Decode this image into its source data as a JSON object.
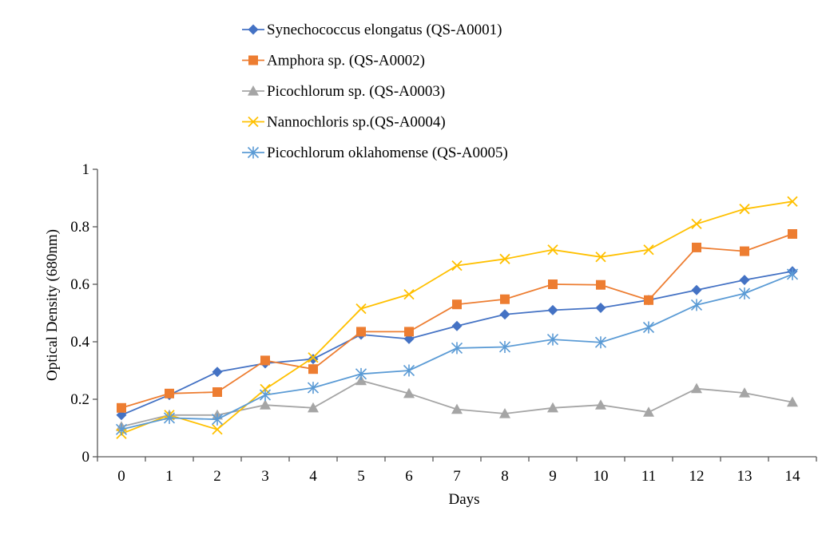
{
  "chart_data": {
    "type": "line",
    "title": "",
    "xlabel": "Days",
    "ylabel": "Optical Density (680nm)",
    "x": [
      0,
      1,
      2,
      3,
      4,
      5,
      6,
      7,
      8,
      9,
      10,
      11,
      12,
      13,
      14
    ],
    "x_tick_labels": [
      "0",
      "1",
      "2",
      "3",
      "4",
      "5",
      "6",
      "7",
      "8",
      "9",
      "10",
      "11",
      "12",
      "13",
      "14"
    ],
    "ylim": [
      0,
      1
    ],
    "y_ticks": [
      0,
      0.2,
      0.4,
      0.6,
      0.8,
      1
    ],
    "y_tick_labels": [
      "0",
      "0.2",
      "0.4",
      "0.6",
      "0.8",
      "1"
    ],
    "grid": false,
    "legend_position": "top",
    "series": [
      {
        "name": "Synechococcus elongatus (QS-A0001)",
        "color": "#4472C4",
        "marker": "diamond",
        "values": [
          0.145,
          0.215,
          0.295,
          0.325,
          0.34,
          0.425,
          0.41,
          0.455,
          0.495,
          0.51,
          0.518,
          0.545,
          0.58,
          0.615,
          0.645
        ]
      },
      {
        "name": "Amphora sp. (QS-A0002)",
        "color": "#ED7D31",
        "marker": "square",
        "values": [
          0.17,
          0.22,
          0.225,
          0.335,
          0.305,
          0.435,
          0.435,
          0.53,
          0.548,
          0.6,
          0.598,
          0.545,
          0.728,
          0.715,
          0.775
        ]
      },
      {
        "name": "Picochlorum sp. (QS-A0003)",
        "color": "#A5A5A5",
        "marker": "triangle",
        "values": [
          0.105,
          0.145,
          0.145,
          0.18,
          0.17,
          0.265,
          0.22,
          0.165,
          0.15,
          0.17,
          0.18,
          0.155,
          0.237,
          0.222,
          0.19
        ]
      },
      {
        "name": "Nannochloris sp.(QS-A0004)",
        "color": "#FFC000",
        "marker": "x",
        "values": [
          0.08,
          0.145,
          0.095,
          0.235,
          0.345,
          0.515,
          0.565,
          0.665,
          0.688,
          0.72,
          0.695,
          0.72,
          0.81,
          0.862,
          0.888
        ]
      },
      {
        "name": "Picochlorum oklahomense (QS-A0005)",
        "color": "#5B9BD5",
        "marker": "asterisk",
        "values": [
          0.095,
          0.135,
          0.13,
          0.215,
          0.24,
          0.288,
          0.3,
          0.378,
          0.382,
          0.408,
          0.398,
          0.45,
          0.528,
          0.568,
          0.635
        ]
      }
    ]
  }
}
